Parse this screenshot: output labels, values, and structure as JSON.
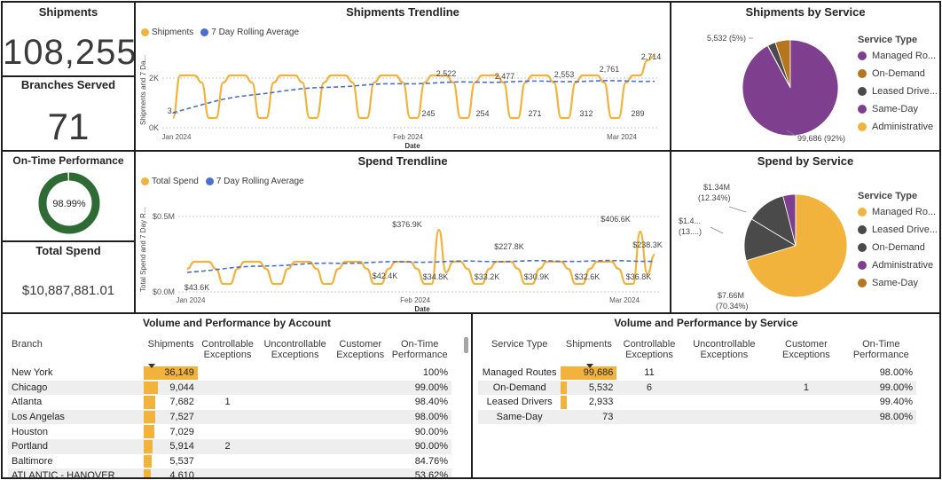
{
  "kpi": {
    "shipments_label": "Shipments",
    "shipments_value": "108,255",
    "branches_label": "Branches Served",
    "branches_value": "71",
    "ontime_label": "On-Time Performance",
    "ontime_value": "98.99%",
    "ontime_fraction": 0.9899,
    "spend_label": "Total Spend",
    "spend_value": "$10,887,881.01"
  },
  "colors": {
    "accent": "#f2b33d",
    "rolling": "#4a6ed1",
    "gauge": "#2e6b34",
    "managed": "#7e3f8f",
    "ondemand": "#b5761e",
    "leased": "#4a4a4a",
    "sameday": "#7e3f8f",
    "administrative": "#f2b33d"
  },
  "shipments_trend": {
    "title": "Shipments Trendline",
    "legend": [
      "Shipments",
      "7 Day Rolling Average"
    ],
    "ylabel": "Shipments and 7 Da...",
    "xlabel": "Date",
    "y_ticks": [
      "2K",
      "0K"
    ],
    "x_ticks": [
      "Jan 2024",
      "Feb 2024",
      "Mar 2024"
    ],
    "labels": [
      "2,522",
      "2,477",
      "2,553",
      "2,761",
      "2,714",
      "245",
      "254",
      "271",
      "312",
      "289",
      "3..."
    ]
  },
  "spend_trend": {
    "title": "Spend Trendline",
    "legend": [
      "Total Spend",
      "7 Day Rolling Average"
    ],
    "ylabel": "Total Spend and 7 Day R...",
    "xlabel": "Date",
    "y_ticks": [
      "$0.5M",
      "$0.0M"
    ],
    "x_ticks": [
      "Jan 2024",
      "Feb 2024",
      "Mar 2024"
    ],
    "labels": [
      "$376.9K",
      "$227.8K",
      "$406.6K",
      "$238.3K",
      "$43.6K",
      "$42.4K",
      "$34.8K",
      "$33.2K",
      "$30.9K",
      "$32.6K",
      "$36.8K"
    ]
  },
  "shipments_by_service": {
    "title": "Shipments by Service",
    "legend_title": "Service Type",
    "legend": [
      "Managed Ro...",
      "On-Demand",
      "Leased Drive...",
      "Same-Day",
      "Administrative"
    ],
    "label_small": "5,532 (5%)",
    "label_large": "99,686 (92%)"
  },
  "spend_by_service": {
    "title": "Spend by Service",
    "legend_title": "Service Type",
    "legend": [
      "Managed Ro...",
      "Leased Drive...",
      "On-Demand",
      "Administrative",
      "Same-Day"
    ],
    "label_a1": "$1.34M",
    "label_a2": "(12.34%)",
    "label_b1": "$1.4...",
    "label_b2": "(13....)",
    "label_c1": "$7.66M",
    "label_c2": "(70.34%)"
  },
  "account_table": {
    "title": "Volume and Performance by Account",
    "headers": [
      "Branch",
      "Shipments",
      "Controllable Exceptions",
      "Uncontrollable Exceptions",
      "Customer Exceptions",
      "On-Time Performance"
    ],
    "rows": [
      {
        "branch": "New York",
        "shipments": "36,149",
        "ctrl": "",
        "unctrl": "",
        "cust": "",
        "otp": "100%",
        "frac": 1.0
      },
      {
        "branch": "Chicago",
        "shipments": "9,044",
        "ctrl": "",
        "unctrl": "",
        "cust": "",
        "otp": "99.00%",
        "frac": 0.25
      },
      {
        "branch": "Atlanta",
        "shipments": "7,682",
        "ctrl": "1",
        "unctrl": "",
        "cust": "",
        "otp": "98.40%",
        "frac": 0.21
      },
      {
        "branch": "Los Angelas",
        "shipments": "7,527",
        "ctrl": "",
        "unctrl": "",
        "cust": "",
        "otp": "98.00%",
        "frac": 0.21
      },
      {
        "branch": "Houston",
        "shipments": "7,029",
        "ctrl": "",
        "unctrl": "",
        "cust": "",
        "otp": "90.00%",
        "frac": 0.19
      },
      {
        "branch": "Portland",
        "shipments": "5,914",
        "ctrl": "2",
        "unctrl": "",
        "cust": "",
        "otp": "90.00%",
        "frac": 0.16
      },
      {
        "branch": "Baltimore",
        "shipments": "5,537",
        "ctrl": "",
        "unctrl": "",
        "cust": "",
        "otp": "84.76%",
        "frac": 0.15
      },
      {
        "branch": "ATLANTIC - HANOVER",
        "shipments": "4,610",
        "ctrl": "",
        "unctrl": "",
        "cust": "",
        "otp": "53.62%",
        "frac": 0.13
      }
    ]
  },
  "service_table": {
    "title": "Volume and Performance by Service",
    "headers": [
      "Service Type",
      "Shipments",
      "Controllable Exceptions",
      "Uncontrollable Exceptions",
      "Customer Exceptions",
      "On-Time Performance"
    ],
    "rows": [
      {
        "type": "Managed Routes",
        "shipments": "99,686",
        "ctrl": "11",
        "unctrl": "",
        "cust": "",
        "otp": "98.00%",
        "frac": 1.0
      },
      {
        "type": "On-Demand",
        "shipments": "5,532",
        "ctrl": "6",
        "unctrl": "",
        "cust": "1",
        "otp": "99.00%",
        "frac": 0.06
      },
      {
        "type": "Leased Drivers",
        "shipments": "2,933",
        "ctrl": "",
        "unctrl": "",
        "cust": "",
        "otp": "99.40%",
        "frac": 0.03
      },
      {
        "type": "Same-Day",
        "shipments": "73",
        "ctrl": "",
        "unctrl": "",
        "cust": "",
        "otp": "98.00%",
        "frac": 0.0
      }
    ]
  }
}
